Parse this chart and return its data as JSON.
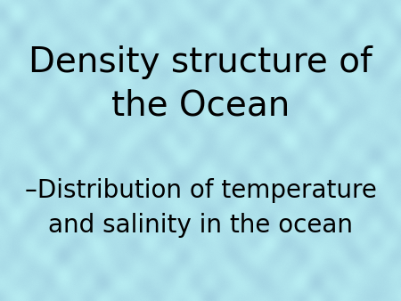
{
  "title_line1": "Density structure of",
  "title_line2": "the Ocean",
  "subtitle_dash": "–Distribution of temperature",
  "subtitle_line2": "and salinity in the ocean",
  "bg_color_base": [
    174,
    225,
    235
  ],
  "text_color": "#000000",
  "title_fontsize": 28,
  "subtitle_fontsize": 20,
  "fig_width": 4.5,
  "fig_height": 3.38,
  "dpi": 100
}
